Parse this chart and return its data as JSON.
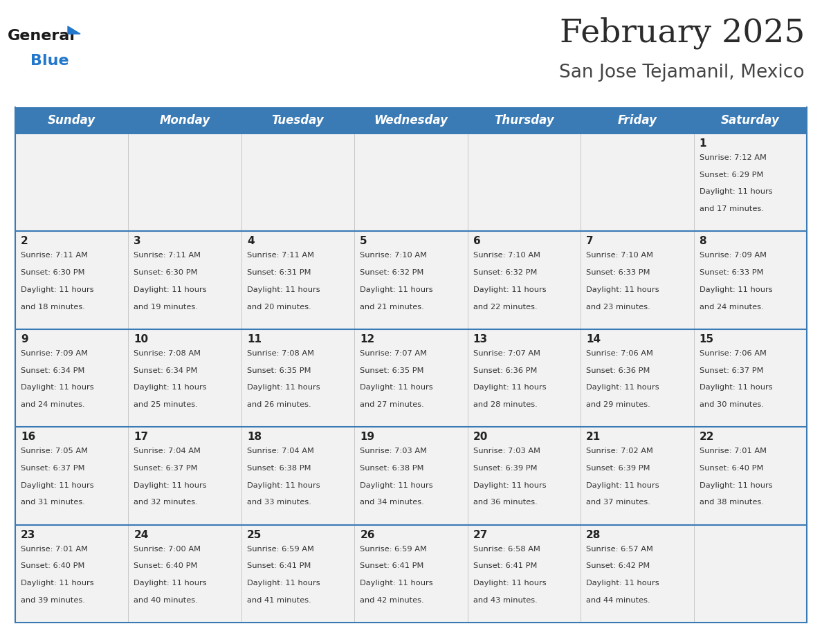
{
  "title": "February 2025",
  "subtitle": "San Jose Tejamanil, Mexico",
  "days_of_week": [
    "Sunday",
    "Monday",
    "Tuesday",
    "Wednesday",
    "Thursday",
    "Friday",
    "Saturday"
  ],
  "header_bg": "#3a7ab5",
  "header_text_color": "#ffffff",
  "cell_bg": "#f2f2f2",
  "border_color": "#3a7ab5",
  "title_color": "#2b2b2b",
  "subtitle_color": "#444444",
  "day_num_color": "#222222",
  "cell_text_color": "#333333",
  "grid_line_color": "#c0c0c0",
  "calendar_data": [
    [
      null,
      null,
      null,
      null,
      null,
      null,
      {
        "day": 1,
        "sunrise": "7:12 AM",
        "sunset": "6:29 PM",
        "daylight_min": "17"
      }
    ],
    [
      {
        "day": 2,
        "sunrise": "7:11 AM",
        "sunset": "6:30 PM",
        "daylight_min": "18"
      },
      {
        "day": 3,
        "sunrise": "7:11 AM",
        "sunset": "6:30 PM",
        "daylight_min": "19"
      },
      {
        "day": 4,
        "sunrise": "7:11 AM",
        "sunset": "6:31 PM",
        "daylight_min": "20"
      },
      {
        "day": 5,
        "sunrise": "7:10 AM",
        "sunset": "6:32 PM",
        "daylight_min": "21"
      },
      {
        "day": 6,
        "sunrise": "7:10 AM",
        "sunset": "6:32 PM",
        "daylight_min": "22"
      },
      {
        "day": 7,
        "sunrise": "7:10 AM",
        "sunset": "6:33 PM",
        "daylight_min": "23"
      },
      {
        "day": 8,
        "sunrise": "7:09 AM",
        "sunset": "6:33 PM",
        "daylight_min": "24"
      }
    ],
    [
      {
        "day": 9,
        "sunrise": "7:09 AM",
        "sunset": "6:34 PM",
        "daylight_min": "24"
      },
      {
        "day": 10,
        "sunrise": "7:08 AM",
        "sunset": "6:34 PM",
        "daylight_min": "25"
      },
      {
        "day": 11,
        "sunrise": "7:08 AM",
        "sunset": "6:35 PM",
        "daylight_min": "26"
      },
      {
        "day": 12,
        "sunrise": "7:07 AM",
        "sunset": "6:35 PM",
        "daylight_min": "27"
      },
      {
        "day": 13,
        "sunrise": "7:07 AM",
        "sunset": "6:36 PM",
        "daylight_min": "28"
      },
      {
        "day": 14,
        "sunrise": "7:06 AM",
        "sunset": "6:36 PM",
        "daylight_min": "29"
      },
      {
        "day": 15,
        "sunrise": "7:06 AM",
        "sunset": "6:37 PM",
        "daylight_min": "30"
      }
    ],
    [
      {
        "day": 16,
        "sunrise": "7:05 AM",
        "sunset": "6:37 PM",
        "daylight_min": "31"
      },
      {
        "day": 17,
        "sunrise": "7:04 AM",
        "sunset": "6:37 PM",
        "daylight_min": "32"
      },
      {
        "day": 18,
        "sunrise": "7:04 AM",
        "sunset": "6:38 PM",
        "daylight_min": "33"
      },
      {
        "day": 19,
        "sunrise": "7:03 AM",
        "sunset": "6:38 PM",
        "daylight_min": "34"
      },
      {
        "day": 20,
        "sunrise": "7:03 AM",
        "sunset": "6:39 PM",
        "daylight_min": "36"
      },
      {
        "day": 21,
        "sunrise": "7:02 AM",
        "sunset": "6:39 PM",
        "daylight_min": "37"
      },
      {
        "day": 22,
        "sunrise": "7:01 AM",
        "sunset": "6:40 PM",
        "daylight_min": "38"
      }
    ],
    [
      {
        "day": 23,
        "sunrise": "7:01 AM",
        "sunset": "6:40 PM",
        "daylight_min": "39"
      },
      {
        "day": 24,
        "sunrise": "7:00 AM",
        "sunset": "6:40 PM",
        "daylight_min": "40"
      },
      {
        "day": 25,
        "sunrise": "6:59 AM",
        "sunset": "6:41 PM",
        "daylight_min": "41"
      },
      {
        "day": 26,
        "sunrise": "6:59 AM",
        "sunset": "6:41 PM",
        "daylight_min": "42"
      },
      {
        "day": 27,
        "sunrise": "6:58 AM",
        "sunset": "6:41 PM",
        "daylight_min": "43"
      },
      {
        "day": 28,
        "sunrise": "6:57 AM",
        "sunset": "6:42 PM",
        "daylight_min": "44"
      },
      null
    ]
  ]
}
